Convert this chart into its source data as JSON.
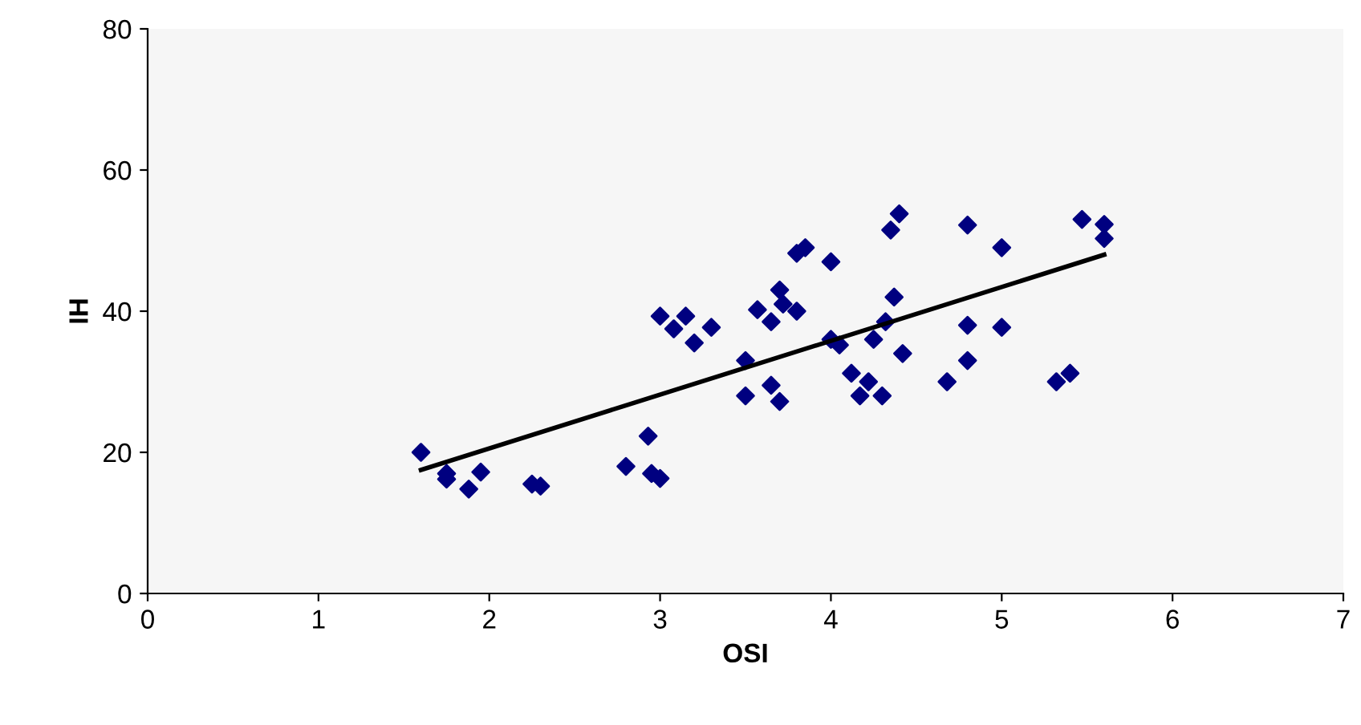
{
  "chart_data": {
    "type": "scatter",
    "xlabel": "OSI",
    "ylabel": "IH",
    "xlim": [
      0,
      7
    ],
    "ylim": [
      0,
      80
    ],
    "xticks": [
      0,
      1,
      2,
      3,
      4,
      5,
      6,
      7
    ],
    "yticks": [
      0,
      20,
      40,
      60,
      80
    ],
    "grid": false,
    "legend": false,
    "series": [
      {
        "marker": "diamond",
        "color": "#000080",
        "x": [
          1.6,
          1.75,
          1.75,
          1.88,
          1.95,
          2.25,
          2.3,
          2.8,
          2.93,
          2.95,
          3.0,
          3.0,
          3.08,
          3.15,
          3.2,
          3.3,
          3.5,
          3.5,
          3.57,
          3.65,
          3.65,
          3.7,
          3.7,
          3.72,
          3.8,
          3.8,
          3.85,
          4.0,
          4.0,
          4.05,
          4.12,
          4.17,
          4.22,
          4.25,
          4.3,
          4.32,
          4.35,
          4.37,
          4.4,
          4.42,
          4.68,
          4.8,
          4.8,
          4.8,
          5.0,
          5.0,
          5.32,
          5.4,
          5.47,
          5.6,
          5.6
        ],
        "values": [
          20,
          17,
          16.2,
          14.8,
          17.2,
          15.5,
          15.2,
          18,
          22.3,
          17,
          16.3,
          39.3,
          37.5,
          39.3,
          35.5,
          37.7,
          33,
          28,
          40.2,
          38.5,
          29.5,
          27.2,
          43,
          41,
          40,
          48.2,
          49,
          47,
          36,
          35.2,
          31.2,
          28,
          30,
          36,
          28,
          38.5,
          51.5,
          42,
          53.8,
          34,
          30,
          52.2,
          38,
          33,
          49,
          37.7,
          30,
          31.2,
          53,
          52.3,
          50.3
        ]
      },
      {
        "type": "line",
        "marker": "none",
        "color": "#000000",
        "x": [
          1.6,
          5.6
        ],
        "values": [
          17.5,
          48
        ]
      }
    ]
  }
}
